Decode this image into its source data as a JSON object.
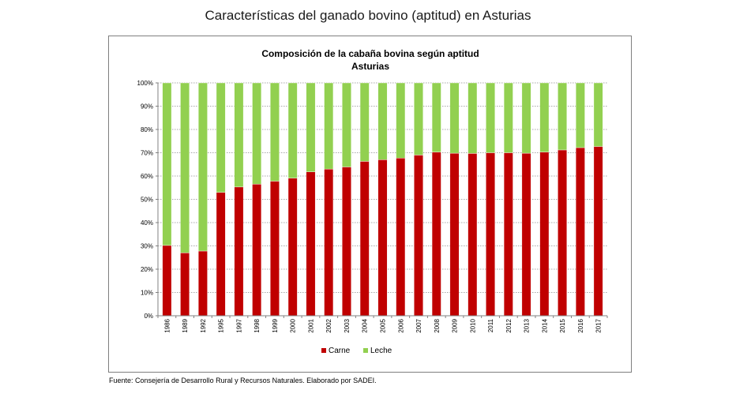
{
  "page_title": "Características del ganado bovino (aptitud) en Asturias",
  "source_note": "Fuente: Consejería de Desarrollo Rural y Recursos Naturales. Elaborado por SADEI.",
  "chart_data": {
    "type": "bar",
    "stacked": true,
    "title": "Composición de la cabaña bovina según aptitud",
    "subtitle": "Asturias",
    "xlabel": "",
    "ylabel": "",
    "ylim": [
      0,
      100
    ],
    "y_ticks": [
      "0%",
      "10%",
      "20%",
      "30%",
      "40%",
      "50%",
      "60%",
      "70%",
      "80%",
      "90%",
      "100%"
    ],
    "grid": true,
    "legend_position": "bottom",
    "categories": [
      "1986",
      "1989",
      "1992",
      "1995",
      "1997",
      "1998",
      "1999",
      "2000",
      "2001",
      "2002",
      "2003",
      "2004",
      "2005",
      "2006",
      "2007",
      "2008",
      "2009",
      "2010",
      "2011",
      "2012",
      "2013",
      "2014",
      "2015",
      "2016",
      "2017"
    ],
    "series": [
      {
        "name": "Carne",
        "color": "#c00000",
        "values": [
          30.2,
          27.0,
          27.8,
          53.0,
          55.3,
          56.5,
          57.8,
          59.1,
          61.8,
          63.0,
          63.9,
          66.3,
          67.0,
          67.7,
          69.0,
          70.3,
          69.8,
          69.7,
          70.0,
          70.0,
          69.8,
          70.3,
          71.2,
          72.2,
          72.7
        ]
      },
      {
        "name": "Leche",
        "color": "#92d050",
        "values": [
          69.8,
          73.0,
          72.2,
          47.0,
          44.7,
          43.5,
          42.2,
          40.9,
          38.2,
          37.0,
          36.1,
          33.7,
          33.0,
          32.3,
          31.0,
          29.7,
          30.2,
          30.3,
          30.0,
          30.0,
          30.2,
          29.7,
          28.8,
          27.8,
          27.3
        ]
      }
    ]
  }
}
